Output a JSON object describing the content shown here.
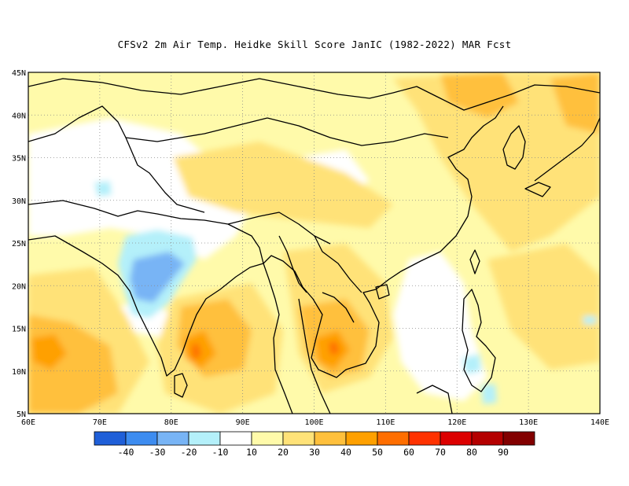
{
  "title": "CFSv2  2m Air Temp. Heidke Skill Score JanIC (1982-2022) MAR Fcst",
  "map": {
    "lon_range": [
      60,
      140
    ],
    "lat_range": [
      5,
      45
    ],
    "lon_labels": [
      "60E",
      "70E",
      "80E",
      "90E",
      "100E",
      "110E",
      "120E",
      "130E",
      "140E"
    ],
    "lat_labels": [
      "5N",
      "10N",
      "15N",
      "20N",
      "25N",
      "30N",
      "35N",
      "40N",
      "45N"
    ],
    "grid": "dotted"
  },
  "colorbar": {
    "colors": [
      "#1f5fd8",
      "#3d8cf0",
      "#78b4f5",
      "#b4f0fa",
      "#ffffff",
      "#fffaaa",
      "#ffe278",
      "#ffc03c",
      "#ffa000",
      "#ff6e00",
      "#ff3200",
      "#dc0000",
      "#b40000",
      "#820000"
    ],
    "labels": [
      "-40",
      "-30",
      "-20",
      "-10",
      "10",
      "20",
      "30",
      "40",
      "50",
      "60",
      "70",
      "80",
      "90"
    ]
  }
}
